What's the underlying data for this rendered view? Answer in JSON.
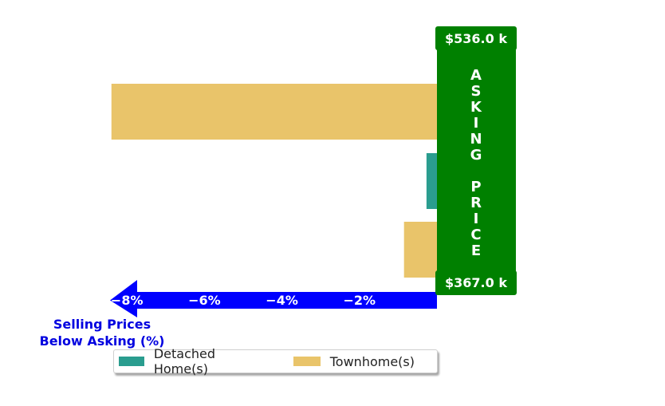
{
  "chart_data": {
    "type": "bar",
    "orientation": "horizontal",
    "series": [
      {
        "name": "Detached Home(s)",
        "color": "#2a9d8f",
        "values": [
          {
            "row": 1,
            "value": -0.27
          }
        ]
      },
      {
        "name": "Townhome(s)",
        "color": "#e9c46a",
        "values": [
          {
            "row": 0,
            "value": -8.4
          },
          {
            "row": 2,
            "value": -0.85
          }
        ]
      }
    ],
    "xlim": [
      -9.1,
      0
    ],
    "xticks": [
      -8,
      -6,
      -4,
      -2
    ],
    "xtick_labels": [
      "−8%",
      "−6%",
      "−4%",
      "−2%"
    ],
    "xlabel": "Selling Prices\nBelow Asking (%)",
    "legend_position": "bottom",
    "asking_price_label": "A\nS\nK\nI\nN\nG\n\nP\nR\nI\nC\nE",
    "top_price": "$536.0 k",
    "bottom_price": "$367.0 k",
    "colors": {
      "panel": "#008000",
      "arrow": "#0000ff",
      "axis_label": "#0000e0",
      "detached": "#2a9d8f",
      "townhome": "#e9c46a"
    }
  }
}
